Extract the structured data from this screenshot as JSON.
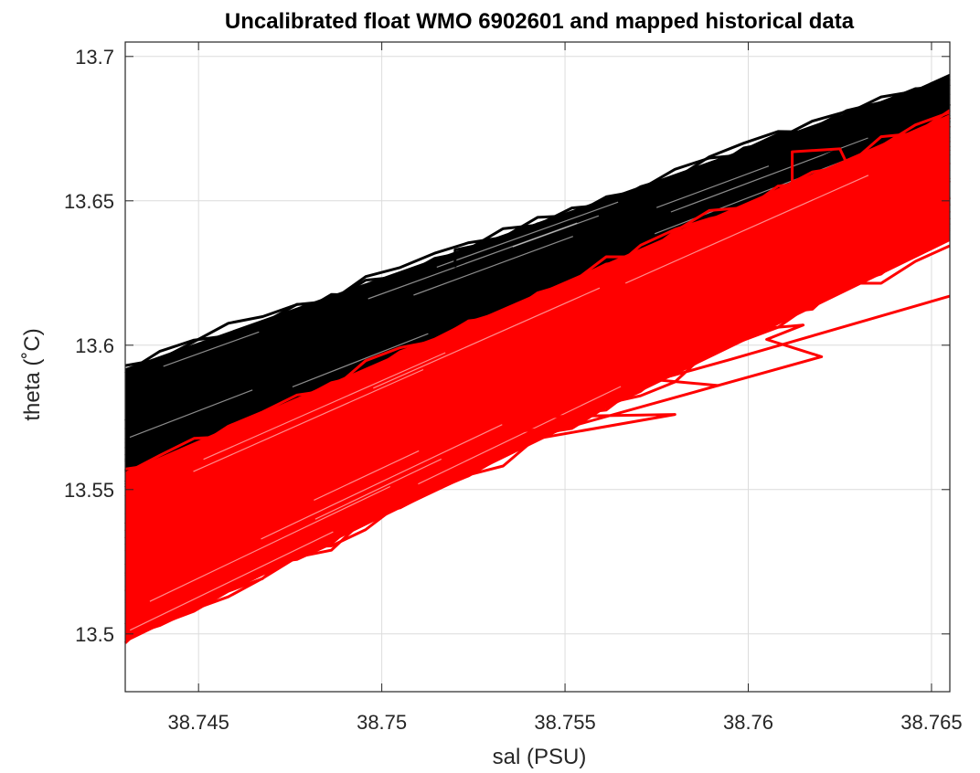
{
  "chart_data": {
    "type": "line",
    "title": "Uncalibrated float WMO 6902601 and mapped historical data",
    "xlabel": "sal (PSU)",
    "ylabel": "theta (˚C)",
    "xlim": [
      38.743,
      38.7655
    ],
    "ylim": [
      13.48,
      13.705
    ],
    "xticks": [
      38.745,
      38.75,
      38.755,
      38.76,
      38.765
    ],
    "xtick_labels": [
      "38.745",
      "38.75",
      "38.755",
      "38.76",
      "38.765"
    ],
    "yticks": [
      13.5,
      13.55,
      13.6,
      13.65,
      13.7
    ],
    "ytick_labels": [
      "13.5",
      "13.55",
      "13.6",
      "13.65",
      "13.7"
    ],
    "grid": true,
    "series": [
      {
        "role": "mapped historical",
        "color": "#000000",
        "band_edges": {
          "upper": [
            [
              38.743,
              13.592
            ],
            [
              38.7655,
              13.693
            ]
          ],
          "lower": [
            [
              38.743,
              13.552
            ],
            [
              38.7655,
              13.668
            ]
          ]
        },
        "outliers": [
          [
            [
              38.752,
              13.627
            ],
            [
              38.752,
              13.633
            ],
            [
              38.7535,
              13.637
            ]
          ],
          [
            [
              38.7612,
              13.653
            ],
            [
              38.7612,
              13.66
            ],
            [
              38.7625,
              13.668
            ]
          ]
        ]
      },
      {
        "role": "uncalibrated float",
        "color": "#ff0000",
        "band_edges": {
          "upper": [
            [
              38.743,
              13.556
            ],
            [
              38.7655,
              13.68
            ]
          ],
          "lower": [
            [
              38.743,
              13.497
            ],
            [
              38.7655,
              13.636
            ]
          ]
        },
        "outliers": [
          [
            [
              38.7535,
              13.575
            ],
            [
              38.758,
              13.576
            ],
            [
              38.7535,
              13.566
            ],
            [
              38.762,
              13.596
            ],
            [
              38.7605,
              13.602
            ],
            [
              38.7615,
              13.607
            ],
            [
              38.757,
              13.602
            ]
          ],
          [
            [
              38.7545,
              13.571
            ],
            [
              38.7535,
              13.57
            ],
            [
              38.7565,
              13.594
            ]
          ],
          [
            [
              38.7592,
              13.586
            ],
            [
              38.7575,
              13.588
            ],
            [
              38.7595,
              13.595
            ],
            [
              38.7655,
              13.617
            ]
          ],
          [
            [
              38.7612,
              13.653
            ],
            [
              38.7612,
              13.667
            ],
            [
              38.7625,
              13.668
            ],
            [
              38.7628,
              13.66
            ]
          ]
        ]
      }
    ]
  }
}
